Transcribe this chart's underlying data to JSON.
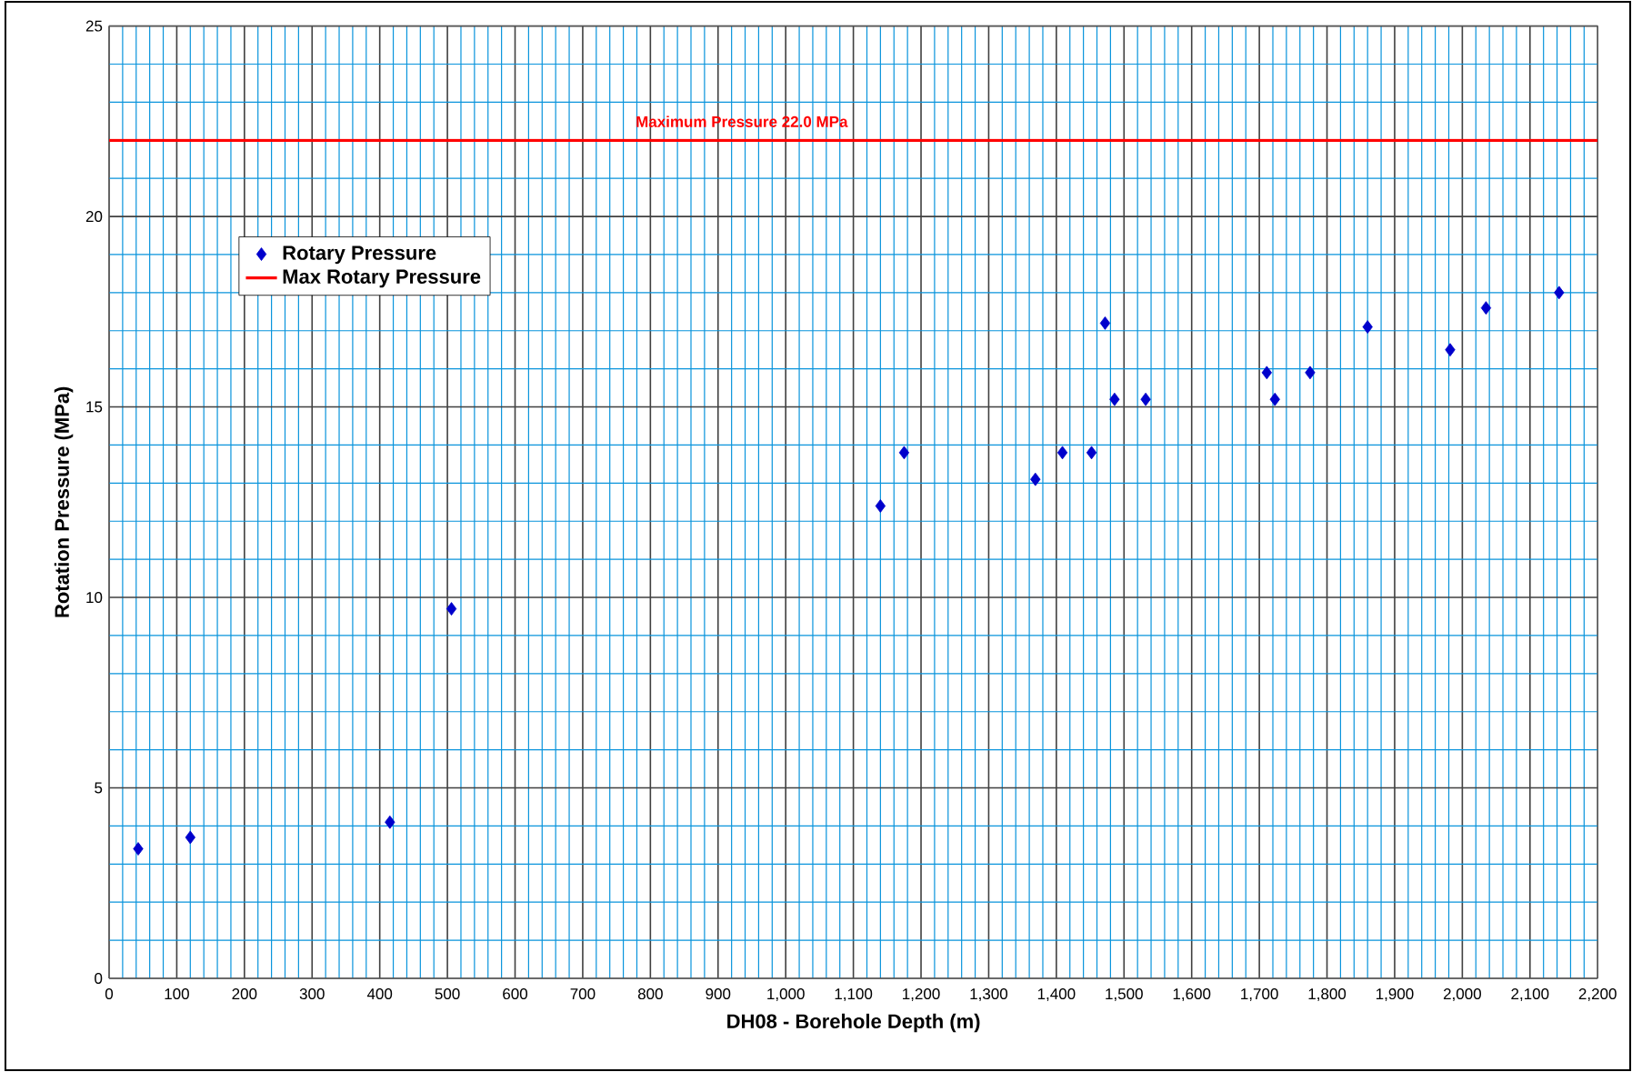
{
  "chart_data": {
    "type": "scatter",
    "xlabel": "DH08 - Borehole Depth (m)",
    "ylabel": "Rotation Pressure (MPa)",
    "xlim": [
      0,
      2200
    ],
    "ylim": [
      0,
      25
    ],
    "xticks": [
      0,
      100,
      200,
      300,
      400,
      500,
      600,
      700,
      800,
      900,
      {
        "value": 1000,
        "label": "1,000"
      },
      {
        "value": 1100,
        "label": "1,100"
      },
      {
        "value": 1200,
        "label": "1,200"
      },
      {
        "value": 1300,
        "label": "1,300"
      },
      {
        "value": 1400,
        "label": "1,400"
      },
      {
        "value": 1500,
        "label": "1,500"
      },
      {
        "value": 1600,
        "label": "1,600"
      },
      {
        "value": 1700,
        "label": "1,700"
      },
      {
        "value": 1800,
        "label": "1,800"
      },
      {
        "value": 1900,
        "label": "1,900"
      },
      {
        "value": 2000,
        "label": "2,000"
      },
      {
        "value": 2100,
        "label": "2,100"
      },
      {
        "value": 2200,
        "label": "2,200"
      },
      {
        "value": 20,
        "label": null
      },
      {
        "value": 40,
        "label": null
      },
      {
        "value": 60,
        "label": null
      },
      {
        "value": 80,
        "label": null
      },
      {
        "value": 120,
        "label": null
      },
      {
        "value": 140,
        "label": null
      },
      {
        "value": 160,
        "label": null
      },
      {
        "value": 180,
        "label": null
      },
      {
        "value": 220,
        "label": null
      },
      {
        "value": 240,
        "label": null
      },
      {
        "value": 260,
        "label": null
      },
      {
        "value": 280,
        "label": null
      },
      {
        "value": 320,
        "label": null
      },
      {
        "value": 340,
        "label": null
      },
      {
        "value": 360,
        "label": null
      },
      {
        "value": 380,
        "label": null
      },
      {
        "value": 420,
        "label": null
      },
      {
        "value": 440,
        "label": null
      },
      {
        "value": 460,
        "label": null
      },
      {
        "value": 480,
        "label": null
      },
      {
        "value": 520,
        "label": null
      },
      {
        "value": 540,
        "label": null
      },
      {
        "value": 560,
        "label": null
      },
      {
        "value": 580,
        "label": null
      },
      {
        "value": 620,
        "label": null
      },
      {
        "value": 640,
        "label": null
      },
      {
        "value": 660,
        "label": null
      },
      {
        "value": 680,
        "label": null
      },
      {
        "value": 720,
        "label": null
      },
      {
        "value": 740,
        "label": null
      },
      {
        "value": 760,
        "label": null
      },
      {
        "value": 780,
        "label": null
      },
      {
        "value": 820,
        "label": null
      },
      {
        "value": 840,
        "label": null
      },
      {
        "value": 860,
        "label": null
      },
      {
        "value": 880,
        "label": null
      },
      {
        "value": 920,
        "label": null
      },
      {
        "value": 940,
        "label": null
      },
      {
        "value": 960,
        "label": null
      },
      {
        "value": 980,
        "label": null
      },
      {
        "value": 1020,
        "label": null
      },
      {
        "value": 1040,
        "label": null
      },
      {
        "value": 1060,
        "label": null
      },
      {
        "value": 1080,
        "label": null
      },
      {
        "value": 1120,
        "label": null
      },
      {
        "value": 1140,
        "label": null
      },
      {
        "value": 1160,
        "label": null
      },
      {
        "value": 1180,
        "label": null
      },
      {
        "value": 1220,
        "label": null
      },
      {
        "value": 1240,
        "label": null
      },
      {
        "value": 1260,
        "label": null
      },
      {
        "value": 1280,
        "label": null
      },
      {
        "value": 1320,
        "label": null
      },
      {
        "value": 1340,
        "label": null
      },
      {
        "value": 1360,
        "label": null
      },
      {
        "value": 1380,
        "label": null
      },
      {
        "value": 1420,
        "label": null
      },
      {
        "value": 1440,
        "label": null
      },
      {
        "value": 1460,
        "label": null
      },
      {
        "value": 1480,
        "label": null
      },
      {
        "value": 1520,
        "label": null
      },
      {
        "value": 1540,
        "label": null
      },
      {
        "value": 1560,
        "label": null
      },
      {
        "value": 1580,
        "label": null
      },
      {
        "value": 1620,
        "label": null
      },
      {
        "value": 1640,
        "label": null
      },
      {
        "value": 1660,
        "label": null
      },
      {
        "value": 1680,
        "label": null
      },
      {
        "value": 1720,
        "label": null
      },
      {
        "value": 1740,
        "label": null
      },
      {
        "value": 1760,
        "label": null
      },
      {
        "value": 1780,
        "label": null
      },
      {
        "value": 1820,
        "label": null
      },
      {
        "value": 1840,
        "label": null
      },
      {
        "value": 1860,
        "label": null
      },
      {
        "value": 1880,
        "label": null
      },
      {
        "value": 1920,
        "label": null
      },
      {
        "value": 1940,
        "label": null
      },
      {
        "value": 1960,
        "label": null
      },
      {
        "value": 1980,
        "label": null
      },
      {
        "value": 2020,
        "label": null
      },
      {
        "value": 2040,
        "label": null
      },
      {
        "value": 2060,
        "label": null
      },
      {
        "value": 2080,
        "label": null
      },
      {
        "value": 2120,
        "label": null
      },
      {
        "value": 2140,
        "label": null
      },
      {
        "value": 2160,
        "label": null
      },
      {
        "value": 2180,
        "label": null
      }
    ],
    "yticks": [
      0,
      5,
      10,
      15,
      20,
      25,
      {
        "value": 1,
        "label": null
      },
      {
        "value": 2,
        "label": null
      },
      {
        "value": 3,
        "label": null
      },
      {
        "value": 4,
        "label": null
      },
      {
        "value": 6,
        "label": null
      },
      {
        "value": 7,
        "label": null
      },
      {
        "value": 8,
        "label": null
      },
      {
        "value": 9,
        "label": null
      },
      {
        "value": 11,
        "label": null
      },
      {
        "value": 12,
        "label": null
      },
      {
        "value": 13,
        "label": null
      },
      {
        "value": 14,
        "label": null
      },
      {
        "value": 16,
        "label": null
      },
      {
        "value": 17,
        "label": null
      },
      {
        "value": 18,
        "label": null
      },
      {
        "value": 19,
        "label": null
      },
      {
        "value": 21,
        "label": null
      },
      {
        "value": 22,
        "label": null
      },
      {
        "value": 23,
        "label": null
      },
      {
        "value": 24,
        "label": null
      }
    ],
    "grid": true,
    "legend": "top left",
    "series": [
      {
        "name": "Rotary Pressure",
        "marker": "diamond",
        "color": "#0000cc",
        "x": [
          43,
          120,
          415,
          506,
          1140,
          1175,
          1369,
          1409,
          1452,
          1472,
          1486,
          1532,
          1711,
          1723,
          1775,
          1860,
          1982,
          2035,
          2143
        ],
        "values": [
          3.4,
          3.7,
          4.1,
          9.7,
          12.4,
          13.8,
          13.1,
          13.8,
          13.8,
          17.2,
          15.2,
          15.2,
          15.9,
          15.2,
          15.9,
          17.1,
          16.5,
          17.6,
          18.0
        ]
      },
      {
        "name": "Max Rotary Pressure",
        "type": "line",
        "marker": "none",
        "color": "#ff0000",
        "x": [
          0,
          2200
        ],
        "values": [
          22,
          22
        ]
      }
    ],
    "annotations": [
      {
        "text": "Maximum Pressure 22.0 MPa",
        "x": 935,
        "y": 22
      }
    ]
  }
}
